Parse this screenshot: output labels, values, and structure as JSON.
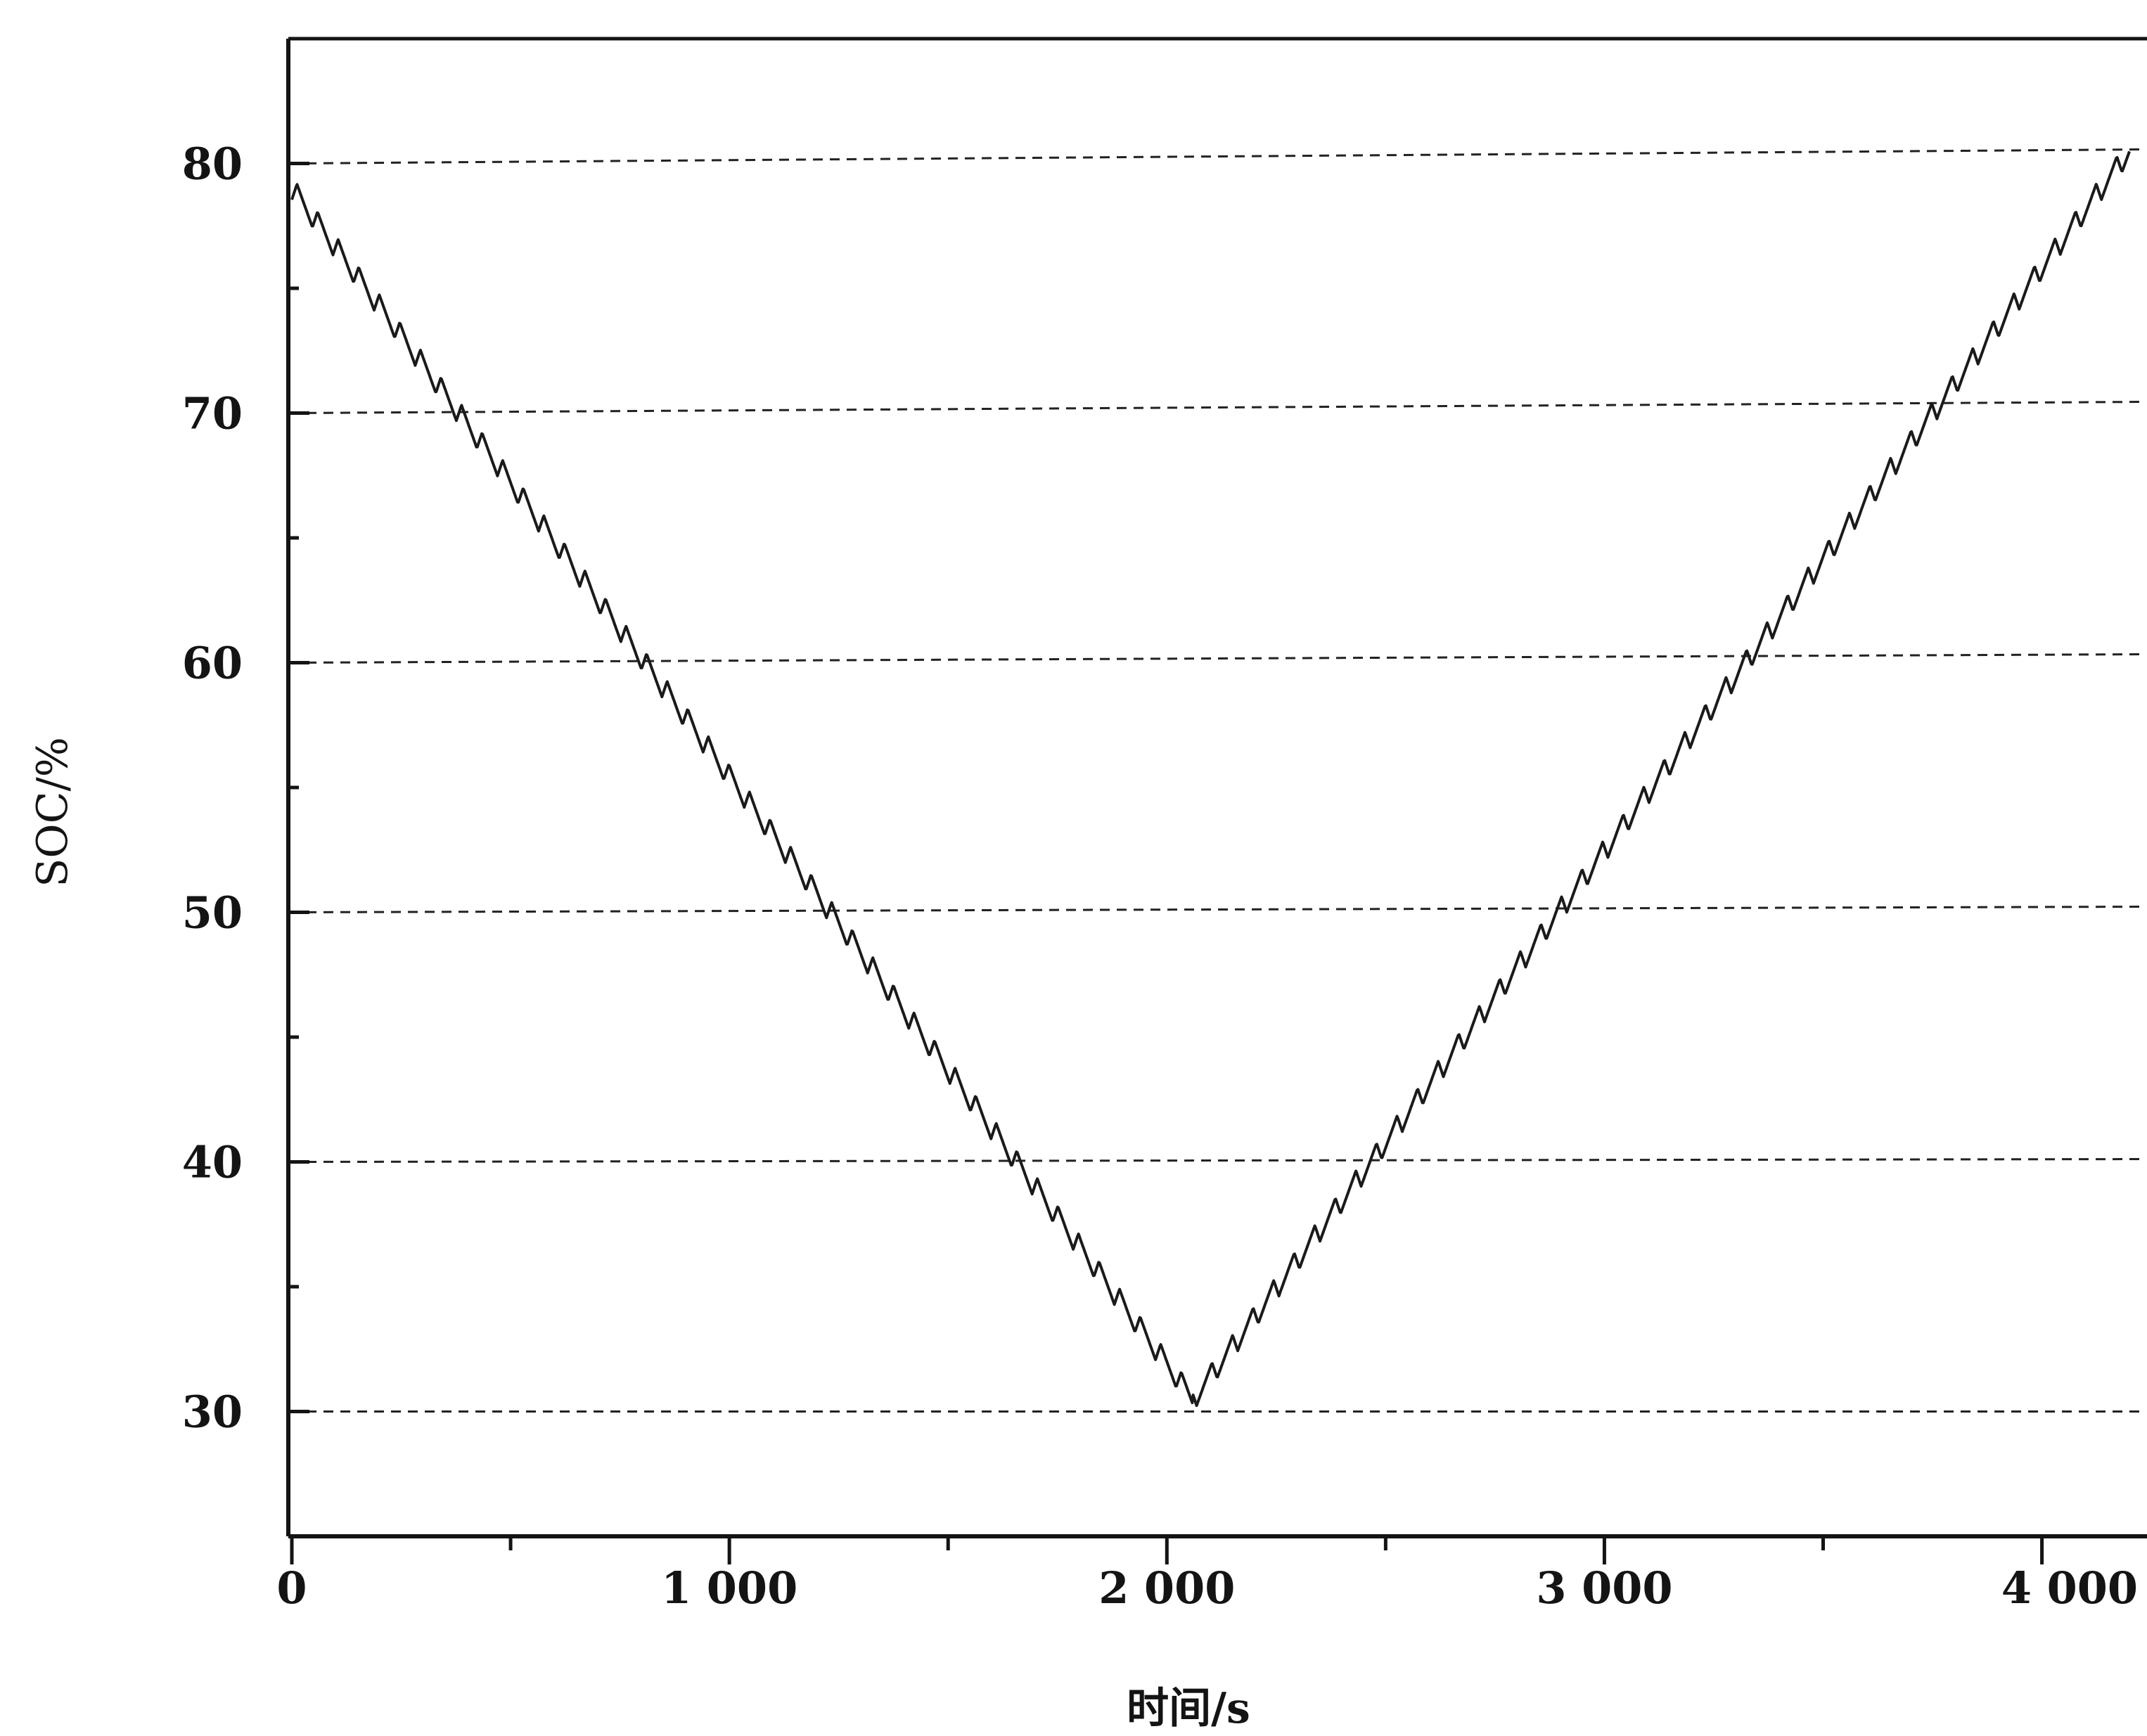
{
  "chart_data": {
    "type": "line",
    "title": "",
    "xlabel": "时间/s",
    "ylabel": "SOC/%",
    "xlim": [
      0,
      4200
    ],
    "ylim": [
      25,
      85
    ],
    "x_ticks": [
      0,
      1000,
      2000,
      3000,
      4000
    ],
    "x_tick_labels": [
      "0",
      "1 000",
      "2 000",
      "3 000",
      "4 000"
    ],
    "y_ticks": [
      30,
      40,
      50,
      60,
      70,
      80
    ],
    "y_tick_labels": [
      "30",
      "40",
      "50",
      "60",
      "70",
      "80"
    ],
    "grid": "horizontal dashed lines at y = 30, 40, 50, 60, 70, 80",
    "series": [
      {
        "line_style": "solid, saw-tooth ripple",
        "color": "#1a1a1a",
        "x": [
          0,
          2060,
          4200
        ],
        "y": [
          79,
          30.5,
          80.5
        ],
        "ripple_period_s": 47,
        "ripple_amplitude_pct": 0.9
      }
    ],
    "colors": {
      "axis": "#141414",
      "line": "#1a1a1a",
      "grid": "#222222",
      "background": "#ffffff"
    }
  }
}
